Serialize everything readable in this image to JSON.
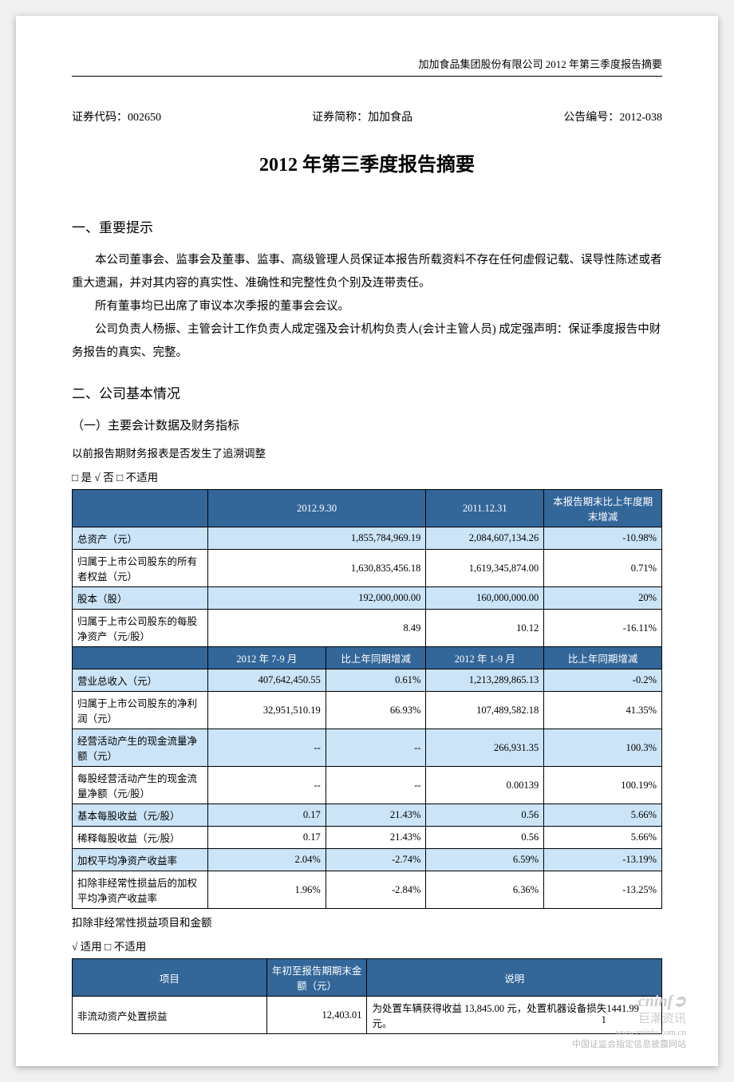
{
  "header": {
    "running_title": "加加食品集团股份有限公司 2012 年第三季度报告摘要"
  },
  "meta": {
    "code_label": "证券代码：",
    "code_value": "002650",
    "short_label": "证券简称：",
    "short_value": "加加食品",
    "notice_label": "公告编号：",
    "notice_value": "2012-038"
  },
  "title": "2012 年第三季度报告摘要",
  "section1": {
    "heading": "一、重要提示",
    "p1": "本公司董事会、监事会及董事、监事、高级管理人员保证本报告所载资料不存在任何虚假记载、误导性陈述或者重大遗漏，并对其内容的真实性、准确性和完整性负个别及连带责任。",
    "p2": "所有董事均已出席了审议本次季报的董事会会议。",
    "p3": "公司负责人杨振、主管会计工作负责人成定强及会计机构负责人(会计主管人员) 成定强声明：保证季度报告中财务报告的真实、完整。"
  },
  "section2": {
    "heading": "二、公司基本情况",
    "sub1": "（一）主要会计数据及财务指标",
    "retro_label": "以前报告期财务报表是否发生了追溯调整",
    "retro_choice": "□ 是 √ 否 □ 不适用"
  },
  "table1": {
    "header_row": [
      "",
      "2012.9.30",
      "2011.12.31",
      "本报告期末比上年度期末增减"
    ],
    "rows": [
      {
        "label": "总资产（元）",
        "c1": "1,855,784,969.19",
        "c2": "2,084,607,134.26",
        "c3": "-10.98%",
        "blue": true
      },
      {
        "label": "归属于上市公司股东的所有者权益（元）",
        "c1": "1,630,835,456.18",
        "c2": "1,619,345,874.00",
        "c3": "0.71%",
        "blue": false
      },
      {
        "label": "股本（股）",
        "c1": "192,000,000.00",
        "c2": "160,000,000.00",
        "c3": "20%",
        "blue": true
      },
      {
        "label": "归属于上市公司股东的每股净资产（元/股）",
        "c1": "8.49",
        "c2": "10.12",
        "c3": "-16.11%",
        "blue": false
      }
    ],
    "header_row2": [
      "",
      "2012 年 7-9 月",
      "比上年同期增减",
      "2012 年 1-9 月",
      "比上年同期增减"
    ],
    "rows2": [
      {
        "label": "营业总收入（元）",
        "c1": "407,642,450.55",
        "c2": "0.61%",
        "c3": "1,213,289,865.13",
        "c4": "-0.2%",
        "blue": true
      },
      {
        "label": "归属于上市公司股东的净利润（元）",
        "c1": "32,951,510.19",
        "c2": "66.93%",
        "c3": "107,489,582.18",
        "c4": "41.35%",
        "blue": false
      },
      {
        "label": "经营活动产生的现金流量净额（元）",
        "c1": "--",
        "c2": "--",
        "c3": "266,931.35",
        "c4": "100.3%",
        "blue": true
      },
      {
        "label": "每股经营活动产生的现金流量净额（元/股）",
        "c1": "--",
        "c2": "--",
        "c3": "0.00139",
        "c4": "100.19%",
        "blue": false
      },
      {
        "label": "基本每股收益（元/股）",
        "c1": "0.17",
        "c2": "21.43%",
        "c3": "0.56",
        "c4": "5.66%",
        "blue": true
      },
      {
        "label": "稀释每股收益（元/股）",
        "c1": "0.17",
        "c2": "21.43%",
        "c3": "0.56",
        "c4": "5.66%",
        "blue": false
      },
      {
        "label": "加权平均净资产收益率",
        "c1": "2.04%",
        "c2": "-2.74%",
        "c3": "6.59%",
        "c4": "-13.19%",
        "blue": true
      },
      {
        "label": "扣除非经常性损益后的加权平均净资产收益率",
        "c1": "1.96%",
        "c2": "-2.84%",
        "c3": "6.36%",
        "c4": "-13.25%",
        "blue": false
      }
    ]
  },
  "nonrecurring": {
    "label": "扣除非经常性损益项目和金额",
    "choice": "√ 适用 □ 不适用"
  },
  "table2": {
    "headers": [
      "项目",
      "年初至报告期期末金额（元）",
      "说明"
    ],
    "rows": [
      {
        "c1": "非流动资产处置损益",
        "c2": "12,403.01",
        "c3": "为处置车辆获得收益 13,845.00 元，处置机器设备损失1441.99 元。"
      }
    ]
  },
  "footer": {
    "page_num": "1",
    "brand": "cninf",
    "brand_cn": "巨潮资讯",
    "url": "www.cninfo.com.cn",
    "tag": "中国证监会指定信息披露网站"
  },
  "styling": {
    "page_bg": "#ffffff",
    "header_bg": "#336699",
    "header_fg": "#ffffff",
    "row_alt_bg": "#cce4f7",
    "border_color": "#000000",
    "body_font_size": 14.5,
    "table_font_size": 12.5,
    "title_font_size": 24
  }
}
